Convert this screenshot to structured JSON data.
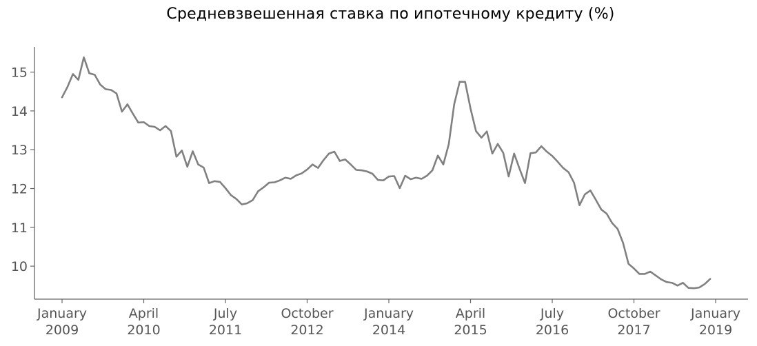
{
  "chart_data": {
    "type": "line",
    "title": "Средневзвешенная ставка по ипотечному кредиту (%)",
    "xlabel": "",
    "ylabel": "",
    "x_tick_labels": [
      {
        "line1": "January",
        "line2": "2009",
        "month_index": 0
      },
      {
        "line1": "April",
        "line2": "2010",
        "month_index": 15
      },
      {
        "line1": "July",
        "line2": "2011",
        "month_index": 30
      },
      {
        "line1": "October",
        "line2": "2012",
        "month_index": 45
      },
      {
        "line1": "January",
        "line2": "2014",
        "month_index": 60
      },
      {
        "line1": "April",
        "line2": "2015",
        "month_index": 75
      },
      {
        "line1": "July",
        "line2": "2016",
        "month_index": 90
      },
      {
        "line1": "October",
        "line2": "2017",
        "month_index": 105
      },
      {
        "line1": "January",
        "line2": "2019",
        "month_index": 120
      }
    ],
    "y_ticks": [
      10,
      11,
      12,
      13,
      14,
      15
    ],
    "ylim": [
      9.15,
      15.65
    ],
    "xlim": [
      "2008-10",
      "2019-06"
    ],
    "grid": false,
    "legend": "none",
    "line_color": "#808080",
    "axis_color": "#666666",
    "series": [
      {
        "x_start": "2009-01",
        "values": [
          14.35,
          14.62,
          14.95,
          14.8,
          15.38,
          14.97,
          14.93,
          14.68,
          14.56,
          14.54,
          14.45,
          13.98,
          14.17,
          13.93,
          13.7,
          13.71,
          13.61,
          13.59,
          13.5,
          13.61,
          13.48,
          12.82,
          12.98,
          12.56,
          12.96,
          12.62,
          12.54,
          12.14,
          12.19,
          12.17,
          12.01,
          11.83,
          11.73,
          11.59,
          11.62,
          11.7,
          11.93,
          12.03,
          12.15,
          12.16,
          12.21,
          12.28,
          12.25,
          12.34,
          12.39,
          12.49,
          12.62,
          12.53,
          12.73,
          12.9,
          12.95,
          12.71,
          12.75,
          12.62,
          12.48,
          12.47,
          12.44,
          12.38,
          12.22,
          12.21,
          12.31,
          12.32,
          12.01,
          12.33,
          12.24,
          12.28,
          12.25,
          12.33,
          12.47,
          12.85,
          12.62,
          13.14,
          14.17,
          14.75,
          14.75,
          14.06,
          13.48,
          13.31,
          13.47,
          12.9,
          13.15,
          12.92,
          12.31,
          12.9,
          12.51,
          12.14,
          12.91,
          12.93,
          13.09,
          12.95,
          12.84,
          12.69,
          12.53,
          12.42,
          12.15,
          11.57,
          11.85,
          11.95,
          11.71,
          11.46,
          11.35,
          11.11,
          10.96,
          10.6,
          10.06,
          9.94,
          9.8,
          9.8,
          9.86,
          9.76,
          9.66,
          9.59,
          9.57,
          9.5,
          9.57,
          9.44,
          9.43,
          9.45,
          9.54,
          9.67
        ]
      }
    ]
  }
}
